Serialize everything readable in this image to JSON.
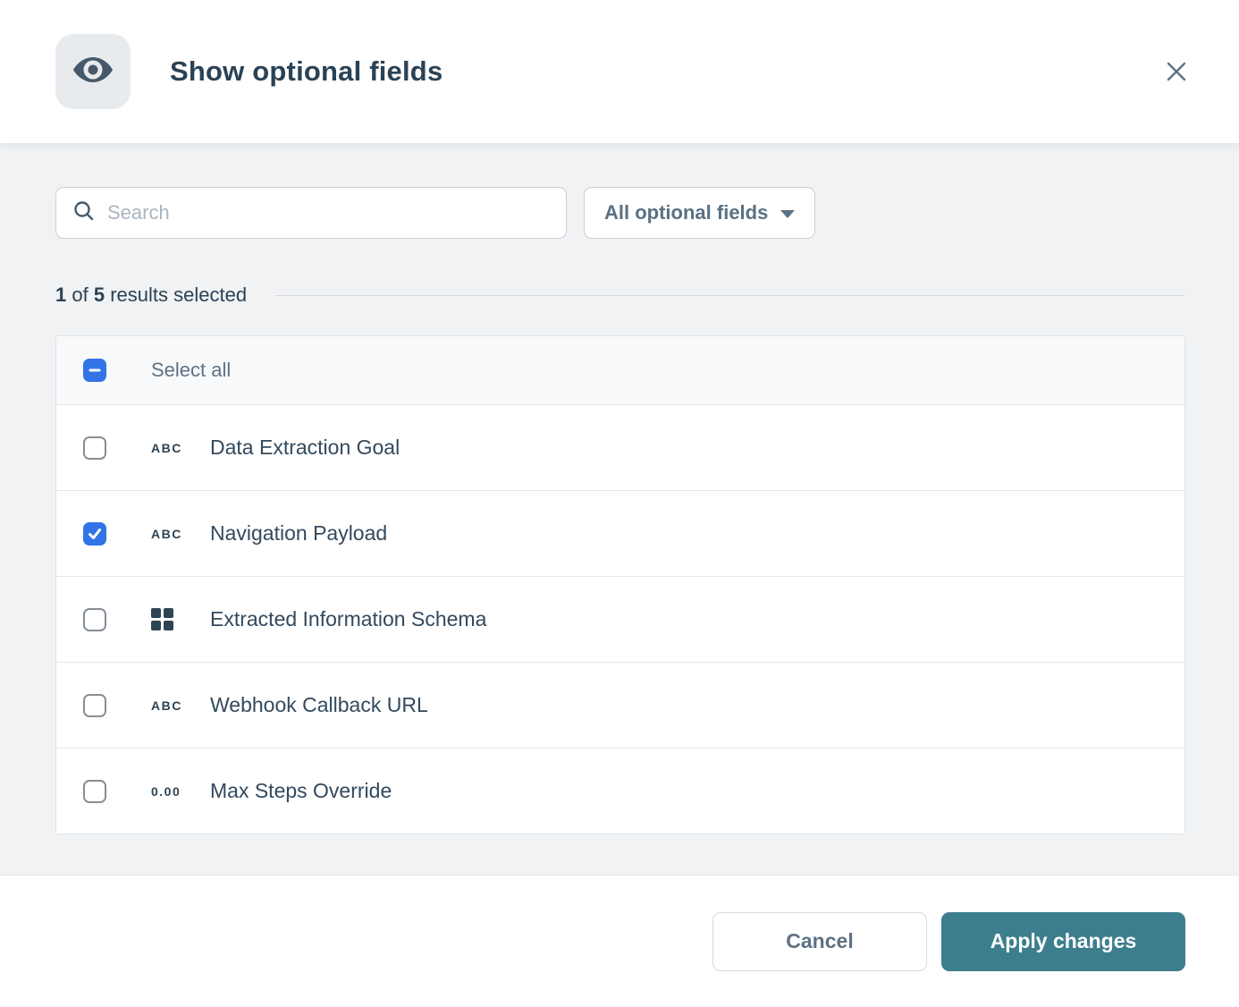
{
  "modal": {
    "title": "Show optional fields",
    "header_icon": "eye-icon",
    "close_icon": "close-icon"
  },
  "search": {
    "placeholder": "Search",
    "value": "",
    "icon": "search-icon"
  },
  "filter_dropdown": {
    "selected": "All optional fields",
    "icon": "chevron-down-icon"
  },
  "results_summary": {
    "selected_count": "1",
    "of_label": "of",
    "total_count": "5",
    "suffix": "results selected"
  },
  "select_all": {
    "label": "Select all",
    "state": "indeterminate"
  },
  "fields": [
    {
      "label": "Data Extraction Goal",
      "type": "text",
      "type_icon_text": "ABC",
      "checked": false
    },
    {
      "label": "Navigation Payload",
      "type": "text",
      "type_icon_text": "ABC",
      "checked": true
    },
    {
      "label": "Extracted Information Schema",
      "type": "object",
      "type_icon_text": "",
      "checked": false
    },
    {
      "label": "Webhook Callback URL",
      "type": "text",
      "type_icon_text": "ABC",
      "checked": false
    },
    {
      "label": "Max Steps Override",
      "type": "number",
      "type_icon_text": "0.00",
      "checked": false
    }
  ],
  "footer": {
    "cancel_label": "Cancel",
    "apply_label": "Apply changes"
  },
  "colors": {
    "checkbox_blue": "#3273e6",
    "apply_teal": "#3d7e8e",
    "title_text": "#2b4255",
    "muted_text": "#5d7285",
    "body_bg": "#f0f2f4",
    "icon_dark": "#46596a"
  }
}
